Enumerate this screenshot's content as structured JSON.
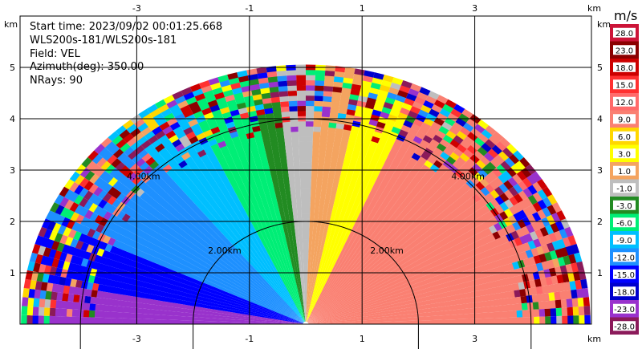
{
  "info": {
    "start_time": "Start time: 2023/09/02 00:01:25.668",
    "instrument": "WLS200s-181/WLS200s-181",
    "field": "Field: VEL",
    "azimuth": "Azimuth(deg): 350.00",
    "nrays": "NRays: 90"
  },
  "chart_data": {
    "type": "heatmap",
    "field": "VEL",
    "units": "m/s",
    "x_ticks": [
      -3,
      -1,
      1,
      3
    ],
    "y_ticks": [
      1,
      2,
      3,
      4,
      5
    ],
    "axis_unit": "km",
    "xlim": [
      -5.0,
      5.0
    ],
    "ylim": [
      0,
      5.9
    ],
    "grid": true,
    "max_range_km": 5.0,
    "range_rings": [
      {
        "radius_km": 2.0,
        "label": "2.00km"
      },
      {
        "radius_km": 4.0,
        "label": "4.00km"
      }
    ],
    "colorbar": {
      "title": "m/s",
      "ticks": [
        "28.0",
        "23.0",
        "18.0",
        "15.0",
        "12.0",
        "9.0",
        "6.0",
        "3.0",
        "1.0",
        "-1.0",
        "-3.0",
        "-6.0",
        "-9.0",
        "-12.0",
        "-15.0",
        "-18.0",
        "-23.0",
        "-28.0"
      ],
      "colors": [
        "#cc1438",
        "#8b0000",
        "#cd0000",
        "#ff3030",
        "#ff6a6a",
        "#fa8072",
        "#ffd700",
        "#ffff00",
        "#f4a460",
        "#bebebe",
        "#228b22",
        "#00ee76",
        "#00bfff",
        "#1e90ff",
        "#0000ff",
        "#0000cd",
        "#9932cc",
        "#8b1a5a"
      ]
    },
    "velocity_sectors": [
      {
        "az_from": -90,
        "az_to": -80,
        "value": -20
      },
      {
        "az_from": -80,
        "az_to": -65,
        "value": -13
      },
      {
        "az_from": -65,
        "az_to": -40,
        "value": -11
      },
      {
        "az_from": -40,
        "az_to": -25,
        "value": -8
      },
      {
        "az_from": -25,
        "az_to": -12,
        "value": -5
      },
      {
        "az_from": -12,
        "az_to": -5,
        "value": -2
      },
      {
        "az_from": -5,
        "az_to": 3,
        "value": 0
      },
      {
        "az_from": 3,
        "az_to": 12,
        "value": 2
      },
      {
        "az_from": 12,
        "az_to": 25,
        "value": 5
      },
      {
        "az_from": 25,
        "az_to": 90,
        "value": 10
      }
    ],
    "noisy_beyond_km": 3.7
  }
}
